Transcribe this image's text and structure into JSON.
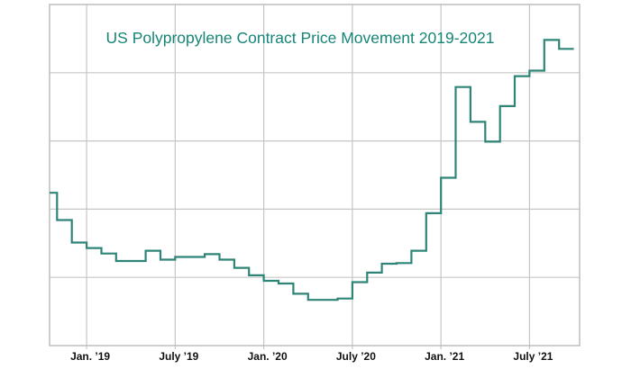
{
  "chart_data": {
    "type": "line",
    "step": true,
    "title": "US Polypropylene Contract Price Movement 2019-2021",
    "xlabel": "",
    "ylabel": "",
    "y_tick_labels_shown": false,
    "grid": true,
    "xlim": [
      "2018-10-16",
      "2021-10-13"
    ],
    "ylim": [
      0,
      5
    ],
    "x_ticks": [
      {
        "date": "2019-01",
        "label": "Jan. ’19"
      },
      {
        "date": "2019-07",
        "label": "July ’19"
      },
      {
        "date": "2020-01",
        "label": "Jan. ’20"
      },
      {
        "date": "2020-07",
        "label": "July ’20"
      },
      {
        "date": "2021-01",
        "label": "Jan. ’21"
      },
      {
        "date": "2021-07",
        "label": "July ’21"
      }
    ],
    "series": [
      {
        "color": "#2e8577",
        "x": [
          "2018-10",
          "2018-11",
          "2018-12",
          "2019-01",
          "2019-02",
          "2019-03",
          "2019-04",
          "2019-05",
          "2019-06",
          "2019-07",
          "2019-08",
          "2019-09",
          "2019-10",
          "2019-11",
          "2019-12",
          "2020-01",
          "2020-02",
          "2020-03",
          "2020-04",
          "2020-05",
          "2020-06",
          "2020-07",
          "2020-08",
          "2020-09",
          "2020-10",
          "2020-11",
          "2020-12",
          "2021-01",
          "2021-02",
          "2021-03",
          "2021-04",
          "2021-05",
          "2021-06",
          "2021-07",
          "2021-08",
          "2021-09"
        ],
        "values": [
          2.24,
          1.84,
          1.51,
          1.43,
          1.35,
          1.24,
          1.24,
          1.39,
          1.26,
          1.3,
          1.3,
          1.34,
          1.26,
          1.14,
          1.03,
          0.95,
          0.91,
          0.76,
          0.67,
          0.67,
          0.69,
          0.93,
          1.07,
          1.2,
          1.21,
          1.39,
          1.94,
          2.46,
          3.79,
          3.28,
          2.99,
          3.51,
          3.95,
          4.03,
          4.48,
          4.35
        ]
      }
    ]
  }
}
